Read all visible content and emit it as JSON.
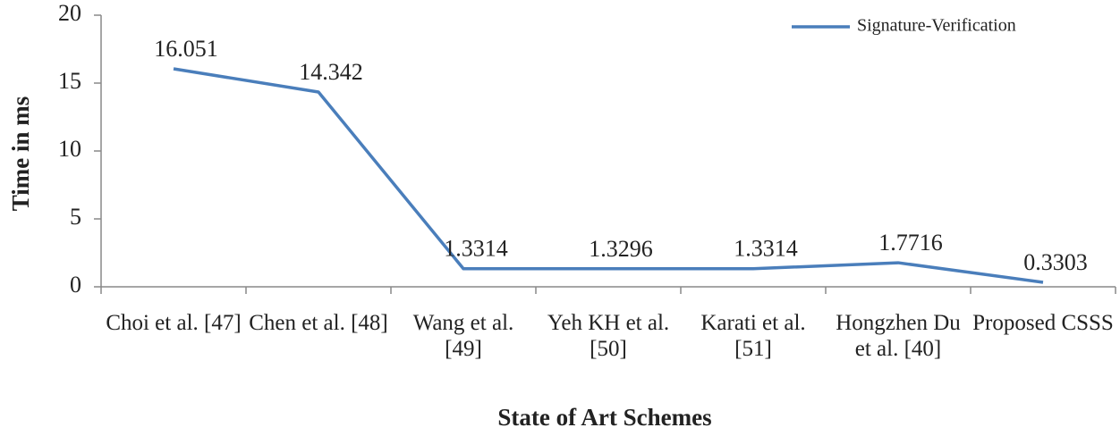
{
  "chart_data": {
    "type": "line",
    "x_label": "State of Art Schemes",
    "y_label": "Time in ms",
    "categories": [
      "Choi et al. [47]",
      "Chen et al. [48]",
      "Wang et al. [49]",
      "Yeh KH et al. [50]",
      "Karati et al. [51]",
      "Hongzhen Du et al. [40]",
      "Proposed CSSS"
    ],
    "series": [
      {
        "name": "Signature-Verification",
        "color": "#4a7ebb",
        "values": [
          16.051,
          14.342,
          1.3314,
          1.3296,
          1.3314,
          1.7716,
          0.3303
        ]
      }
    ],
    "ylim": [
      0,
      20
    ],
    "yticks": [
      0,
      5,
      10,
      15,
      20
    ],
    "grid": false,
    "legend": "top-right",
    "data_labels": true
  }
}
